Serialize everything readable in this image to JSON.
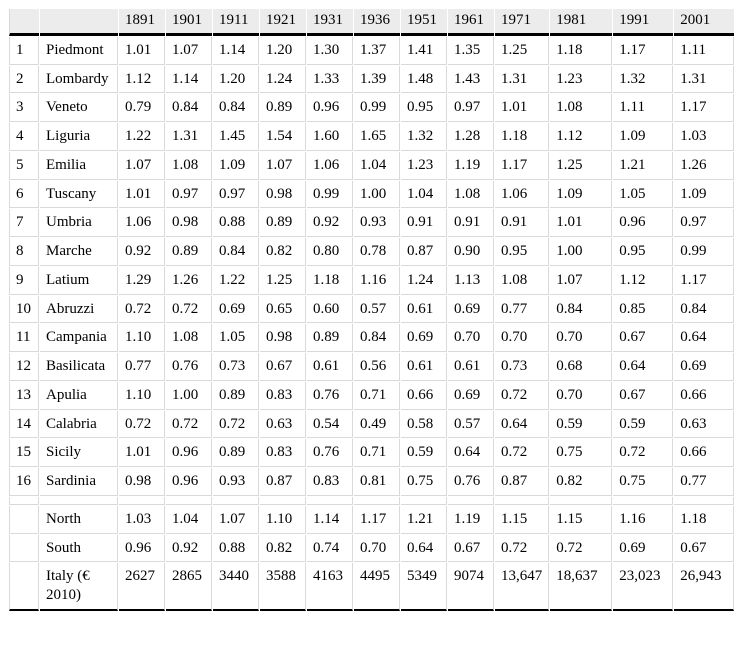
{
  "table": {
    "title_semantic": "Italian regional per-capita GDP relative to national average, with Italy per-capita GDP in euro 2010",
    "colors": {
      "header_bg": "#ececec",
      "grid_line": "#d9d9d9",
      "heavy_rule": "#000000",
      "text": "#000000"
    },
    "header": {
      "num_label": "",
      "region_label": "",
      "years": [
        "1891",
        "1901",
        "1911",
        "1921",
        "1931",
        "1936",
        "1951",
        "1961",
        "1971",
        "1981",
        "1991",
        "2001"
      ]
    },
    "regions": [
      {
        "num": "1",
        "name": "Piedmont",
        "values": [
          "1.01",
          "1.07",
          "1.14",
          "1.20",
          "1.30",
          "1.37",
          "1.41",
          "1.35",
          "1.25",
          "1.18",
          "1.17",
          "1.11"
        ]
      },
      {
        "num": "2",
        "name": "Lombardy",
        "values": [
          "1.12",
          "1.14",
          "1.20",
          "1.24",
          "1.33",
          "1.39",
          "1.48",
          "1.43",
          "1.31",
          "1.23",
          "1.32",
          "1.31"
        ]
      },
      {
        "num": "3",
        "name": "Veneto",
        "values": [
          "0.79",
          "0.84",
          "0.84",
          "0.89",
          "0.96",
          "0.99",
          "0.95",
          "0.97",
          "1.01",
          "1.08",
          "1.11",
          "1.17"
        ]
      },
      {
        "num": "4",
        "name": "Liguria",
        "values": [
          "1.22",
          "1.31",
          "1.45",
          "1.54",
          "1.60",
          "1.65",
          "1.32",
          "1.28",
          "1.18",
          "1.12",
          "1.09",
          "1.03"
        ]
      },
      {
        "num": "5",
        "name": "Emilia",
        "values": [
          "1.07",
          "1.08",
          "1.09",
          "1.07",
          "1.06",
          "1.04",
          "1.23",
          "1.19",
          "1.17",
          "1.25",
          "1.21",
          "1.26"
        ]
      },
      {
        "num": "6",
        "name": "Tuscany",
        "values": [
          "1.01",
          "0.97",
          "0.97",
          "0.98",
          "0.99",
          "1.00",
          "1.04",
          "1.08",
          "1.06",
          "1.09",
          "1.05",
          "1.09"
        ]
      },
      {
        "num": "7",
        "name": "Umbria",
        "values": [
          "1.06",
          "0.98",
          "0.88",
          "0.89",
          "0.92",
          "0.93",
          "0.91",
          "0.91",
          "0.91",
          "1.01",
          "0.96",
          "0.97"
        ]
      },
      {
        "num": "8",
        "name": "Marche",
        "values": [
          "0.92",
          "0.89",
          "0.84",
          "0.82",
          "0.80",
          "0.78",
          "0.87",
          "0.90",
          "0.95",
          "1.00",
          "0.95",
          "0.99"
        ]
      },
      {
        "num": "9",
        "name": "Latium",
        "values": [
          "1.29",
          "1.26",
          "1.22",
          "1.25",
          "1.18",
          "1.16",
          "1.24",
          "1.13",
          "1.08",
          "1.07",
          "1.12",
          "1.17"
        ]
      },
      {
        "num": "10",
        "name": "Abruzzi",
        "values": [
          "0.72",
          "0.72",
          "0.69",
          "0.65",
          "0.60",
          "0.57",
          "0.61",
          "0.69",
          "0.77",
          "0.84",
          "0.85",
          "0.84"
        ]
      },
      {
        "num": "11",
        "name": "Campania",
        "values": [
          "1.10",
          "1.08",
          "1.05",
          "0.98",
          "0.89",
          "0.84",
          "0.69",
          "0.70",
          "0.70",
          "0.70",
          "0.67",
          "0.64"
        ]
      },
      {
        "num": "12",
        "name": "Basilicata",
        "values": [
          "0.77",
          "0.76",
          "0.73",
          "0.67",
          "0.61",
          "0.56",
          "0.61",
          "0.61",
          "0.73",
          "0.68",
          "0.64",
          "0.69"
        ]
      },
      {
        "num": "13",
        "name": "Apulia",
        "values": [
          "1.10",
          "1.00",
          "0.89",
          "0.83",
          "0.76",
          "0.71",
          "0.66",
          "0.69",
          "0.72",
          "0.70",
          "0.67",
          "0.66"
        ]
      },
      {
        "num": "14",
        "name": "Calabria",
        "values": [
          "0.72",
          "0.72",
          "0.72",
          "0.63",
          "0.54",
          "0.49",
          "0.58",
          "0.57",
          "0.64",
          "0.59",
          "0.59",
          "0.63"
        ]
      },
      {
        "num": "15",
        "name": "Sicily",
        "values": [
          "1.01",
          "0.96",
          "0.89",
          "0.83",
          "0.76",
          "0.71",
          "0.59",
          "0.64",
          "0.72",
          "0.75",
          "0.72",
          "0.66"
        ]
      },
      {
        "num": "16",
        "name": "Sardinia",
        "values": [
          "0.98",
          "0.96",
          "0.93",
          "0.87",
          "0.83",
          "0.81",
          "0.75",
          "0.76",
          "0.87",
          "0.82",
          "0.75",
          "0.77"
        ]
      }
    ],
    "summary": [
      {
        "num": "",
        "name": "North",
        "values": [
          "1.03",
          "1.04",
          "1.07",
          "1.10",
          "1.14",
          "1.17",
          "1.21",
          "1.19",
          "1.15",
          "1.15",
          "1.16",
          "1.18"
        ]
      },
      {
        "num": "",
        "name": "South",
        "values": [
          "0.96",
          "0.92",
          "0.88",
          "0.82",
          "0.74",
          "0.70",
          "0.64",
          "0.67",
          "0.72",
          "0.72",
          "0.69",
          "0.67"
        ]
      },
      {
        "num": "",
        "name": "Italy (€ 2010)",
        "values": [
          "2627",
          "2865",
          "3440",
          "3588",
          "4163",
          "4495",
          "5349",
          "9074",
          "13,647",
          "18,637",
          "23,023",
          "26,943"
        ]
      }
    ]
  }
}
